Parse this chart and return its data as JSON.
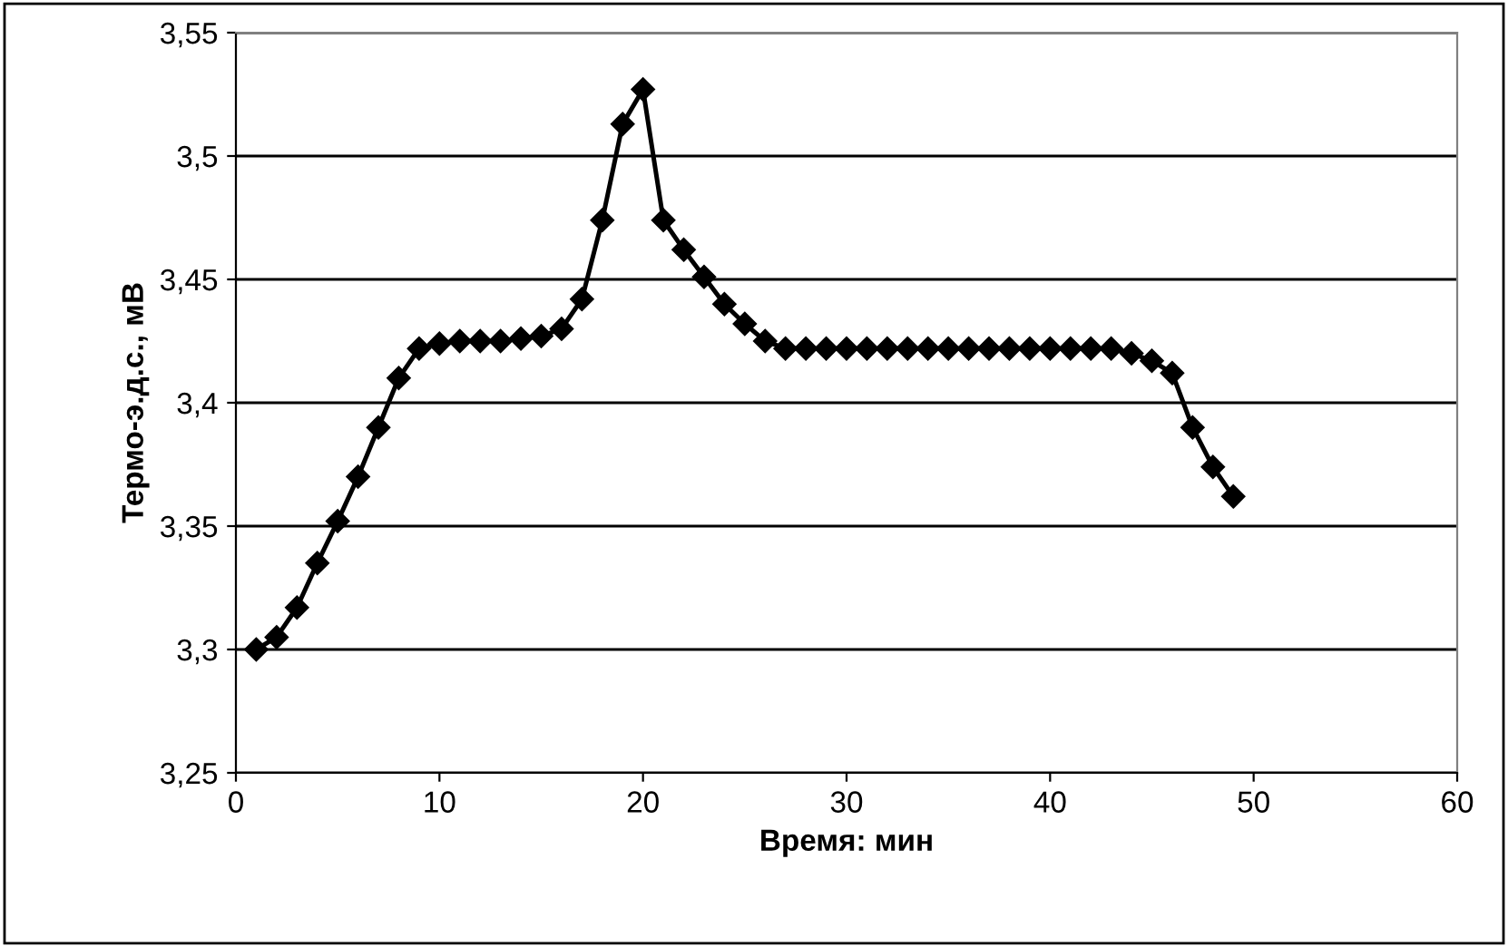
{
  "chart_data": {
    "type": "line",
    "xlabel": "Время: мин",
    "ylabel": "Термо-э.д.с., мВ",
    "x": [
      1,
      2,
      3,
      4,
      5,
      6,
      7,
      8,
      9,
      10,
      11,
      12,
      13,
      14,
      15,
      16,
      17,
      18,
      19,
      20,
      21,
      22,
      23,
      24,
      25,
      26,
      27,
      28,
      29,
      30,
      31,
      32,
      33,
      34,
      35,
      36,
      37,
      38,
      39,
      40,
      41,
      42,
      43,
      44,
      45,
      46,
      47,
      48,
      49
    ],
    "series": [
      {
        "color": "#000000",
        "values": [
          3.3,
          3.305,
          3.317,
          3.335,
          3.352,
          3.37,
          3.39,
          3.41,
          3.422,
          3.424,
          3.425,
          3.425,
          3.425,
          3.426,
          3.427,
          3.43,
          3.442,
          3.474,
          3.513,
          3.527,
          3.474,
          3.462,
          3.451,
          3.44,
          3.432,
          3.425,
          3.422,
          3.422,
          3.422,
          3.422,
          3.422,
          3.422,
          3.422,
          3.422,
          3.422,
          3.422,
          3.422,
          3.422,
          3.422,
          3.422,
          3.422,
          3.422,
          3.422,
          3.42,
          3.417,
          3.412,
          3.39,
          3.374,
          3.362
        ]
      }
    ],
    "xlim": [
      0,
      60
    ],
    "xticks": [
      0,
      10,
      20,
      30,
      40,
      50,
      60
    ],
    "ylim": [
      3.25,
      3.55
    ],
    "yticks": [
      {
        "value": 3.25,
        "label": "3,25"
      },
      {
        "value": 3.3,
        "label": "3,3"
      },
      {
        "value": 3.35,
        "label": "3,35"
      },
      {
        "value": 3.4,
        "label": "3,4"
      },
      {
        "value": 3.45,
        "label": "3,45"
      },
      {
        "value": 3.5,
        "label": "3,5"
      },
      {
        "value": 3.55,
        "label": "3,55"
      }
    ],
    "grid": "y",
    "legend": false,
    "marker": "diamond",
    "line_style": "solid"
  }
}
